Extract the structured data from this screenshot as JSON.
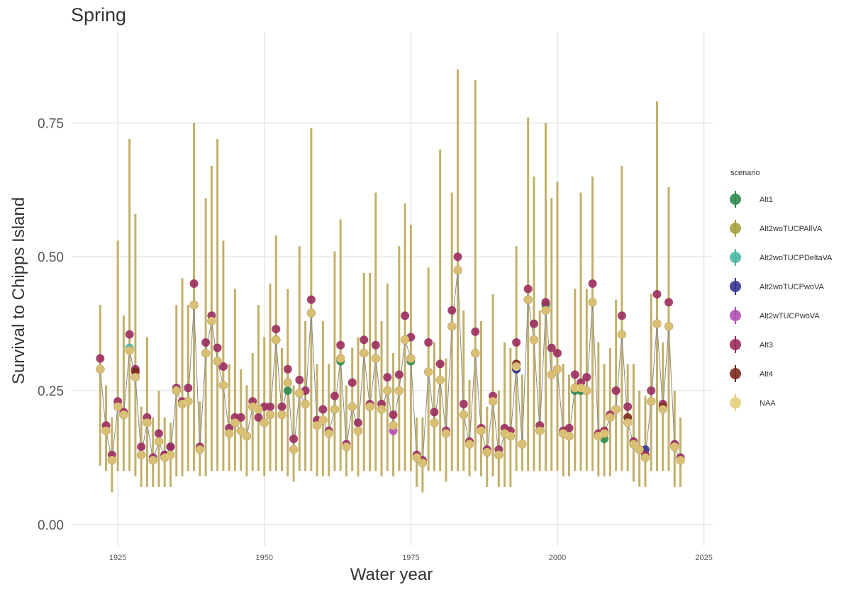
{
  "chart_data": {
    "type": "errorbar-line",
    "title": "Spring",
    "x_label": "Water year",
    "y_label": "Survival to Chipps Island",
    "legend_title": "scenario",
    "x": [
      1922,
      1923,
      1924,
      1925,
      1926,
      1927,
      1928,
      1929,
      1930,
      1931,
      1932,
      1933,
      1934,
      1935,
      1936,
      1937,
      1938,
      1939,
      1940,
      1941,
      1942,
      1943,
      1944,
      1945,
      1946,
      1947,
      1948,
      1949,
      1950,
      1951,
      1952,
      1953,
      1954,
      1955,
      1956,
      1957,
      1958,
      1959,
      1960,
      1961,
      1962,
      1963,
      1964,
      1965,
      1966,
      1967,
      1968,
      1969,
      1970,
      1971,
      1972,
      1973,
      1974,
      1975,
      1976,
      1977,
      1978,
      1979,
      1980,
      1981,
      1982,
      1983,
      1984,
      1985,
      1986,
      1987,
      1988,
      1989,
      1990,
      1991,
      1992,
      1993,
      1994,
      1995,
      1996,
      1997,
      1998,
      1999,
      2000,
      2001,
      2002,
      2003,
      2004,
      2005,
      2006,
      2007,
      2008,
      2009,
      2010,
      2011,
      2012,
      2013,
      2014,
      2015,
      2016,
      2017,
      2018,
      2019,
      2020,
      2021
    ],
    "xlim": [
      1917,
      2026.5
    ],
    "xticks": [
      1925,
      1950,
      1975,
      2000,
      2025
    ],
    "ylim": [
      -0.04,
      0.92
    ],
    "yticks": [
      {
        "value": 0,
        "label": "0.00"
      },
      {
        "value": 0.25,
        "label": "0.25"
      },
      {
        "value": 0.5,
        "label": "0.50"
      },
      {
        "value": 0.75,
        "label": "0.75"
      }
    ],
    "grid": true,
    "legend": "right",
    "series": [
      {
        "name": "Alt1",
        "color": "#2e8b4f",
        "values": [
          0.29,
          0.175,
          0.12,
          0.22,
          0.205,
          0.325,
          0.275,
          0.13,
          0.19,
          0.12,
          0.155,
          0.125,
          0.13,
          0.25,
          0.225,
          0.23,
          0.41,
          0.14,
          0.32,
          0.38,
          0.305,
          0.26,
          0.17,
          0.19,
          0.175,
          0.165,
          0.22,
          0.215,
          0.19,
          0.205,
          0.345,
          0.205,
          0.25,
          0.14,
          0.245,
          0.225,
          0.395,
          0.185,
          0.195,
          0.17,
          0.215,
          0.305,
          0.145,
          0.22,
          0.175,
          0.32,
          0.22,
          0.31,
          0.215,
          0.25,
          0.185,
          0.25,
          0.345,
          0.305,
          0.125,
          0.115,
          0.285,
          0.19,
          0.27,
          0.17,
          0.37,
          0.475,
          0.205,
          0.15,
          0.32,
          0.175,
          0.135,
          0.23,
          0.13,
          0.17,
          0.165,
          0.29,
          0.15,
          0.42,
          0.345,
          0.175,
          0.41,
          0.28,
          0.29,
          0.17,
          0.165,
          0.25,
          0.25,
          0.25,
          0.415,
          0.165,
          0.16,
          0.2,
          0.215,
          0.355,
          0.19,
          0.15,
          0.14,
          0.125,
          0.23,
          0.375,
          0.215,
          0.37,
          0.145,
          0.12
        ]
      },
      {
        "name": "Alt2woTUCPAllVA",
        "color": "#a6a03c",
        "values": [
          0.29,
          0.175,
          0.12,
          0.22,
          0.205,
          0.325,
          0.275,
          0.13,
          0.19,
          0.12,
          0.155,
          0.125,
          0.13,
          0.25,
          0.225,
          0.23,
          0.41,
          0.14,
          0.32,
          0.38,
          0.305,
          0.26,
          0.17,
          0.19,
          0.175,
          0.165,
          0.22,
          0.215,
          0.19,
          0.205,
          0.345,
          0.205,
          0.265,
          0.14,
          0.245,
          0.225,
          0.395,
          0.185,
          0.195,
          0.17,
          0.215,
          0.31,
          0.145,
          0.22,
          0.175,
          0.32,
          0.22,
          0.31,
          0.215,
          0.25,
          0.185,
          0.25,
          0.345,
          0.31,
          0.125,
          0.115,
          0.285,
          0.19,
          0.27,
          0.17,
          0.37,
          0.475,
          0.205,
          0.15,
          0.32,
          0.175,
          0.135,
          0.23,
          0.13,
          0.17,
          0.165,
          0.295,
          0.15,
          0.42,
          0.345,
          0.175,
          0.4,
          0.28,
          0.29,
          0.17,
          0.165,
          0.255,
          0.255,
          0.25,
          0.415,
          0.165,
          0.17,
          0.2,
          0.215,
          0.355,
          0.19,
          0.15,
          0.14,
          0.125,
          0.23,
          0.375,
          0.215,
          0.37,
          0.145,
          0.12
        ]
      },
      {
        "name": "Alt2woTUCPDeltaVA",
        "color": "#4db6a4",
        "values": [
          0.29,
          0.175,
          0.12,
          0.22,
          0.205,
          0.33,
          0.275,
          0.13,
          0.19,
          0.12,
          0.155,
          0.125,
          0.13,
          0.25,
          0.225,
          0.23,
          0.41,
          0.14,
          0.32,
          0.38,
          0.305,
          0.26,
          0.17,
          0.19,
          0.175,
          0.165,
          0.22,
          0.215,
          0.19,
          0.205,
          0.345,
          0.205,
          0.265,
          0.14,
          0.245,
          0.225,
          0.395,
          0.185,
          0.195,
          0.17,
          0.215,
          0.31,
          0.145,
          0.22,
          0.175,
          0.32,
          0.22,
          0.31,
          0.215,
          0.25,
          0.185,
          0.25,
          0.345,
          0.31,
          0.125,
          0.115,
          0.285,
          0.19,
          0.27,
          0.17,
          0.37,
          0.475,
          0.205,
          0.15,
          0.32,
          0.175,
          0.135,
          0.23,
          0.13,
          0.17,
          0.165,
          0.295,
          0.15,
          0.42,
          0.345,
          0.175,
          0.4,
          0.28,
          0.29,
          0.17,
          0.165,
          0.255,
          0.255,
          0.25,
          0.415,
          0.165,
          0.17,
          0.2,
          0.215,
          0.355,
          0.19,
          0.15,
          0.14,
          0.125,
          0.23,
          0.375,
          0.215,
          0.37,
          0.145,
          0.12
        ]
      },
      {
        "name": "Alt2woTUCPwoVA",
        "color": "#35358f",
        "values": [
          0.29,
          0.175,
          0.12,
          0.22,
          0.205,
          0.325,
          0.275,
          0.13,
          0.19,
          0.12,
          0.155,
          0.13,
          0.145,
          0.25,
          0.225,
          0.23,
          0.41,
          0.14,
          0.32,
          0.38,
          0.305,
          0.26,
          0.17,
          0.19,
          0.175,
          0.165,
          0.22,
          0.215,
          0.19,
          0.205,
          0.345,
          0.205,
          0.265,
          0.14,
          0.245,
          0.225,
          0.395,
          0.185,
          0.195,
          0.17,
          0.215,
          0.31,
          0.145,
          0.22,
          0.175,
          0.32,
          0.22,
          0.31,
          0.215,
          0.25,
          0.185,
          0.25,
          0.345,
          0.31,
          0.125,
          0.115,
          0.285,
          0.19,
          0.27,
          0.17,
          0.37,
          0.475,
          0.205,
          0.15,
          0.32,
          0.175,
          0.135,
          0.23,
          0.13,
          0.17,
          0.165,
          0.29,
          0.15,
          0.42,
          0.345,
          0.175,
          0.4,
          0.28,
          0.29,
          0.17,
          0.165,
          0.255,
          0.255,
          0.25,
          0.415,
          0.165,
          0.17,
          0.2,
          0.215,
          0.355,
          0.19,
          0.15,
          0.14,
          0.14,
          0.23,
          0.375,
          0.215,
          0.37,
          0.145,
          0.12
        ]
      },
      {
        "name": "Alt2wTUCPwoVA",
        "color": "#b04fb4",
        "values": [
          0.29,
          0.175,
          0.12,
          0.22,
          0.205,
          0.325,
          0.275,
          0.13,
          0.19,
          0.12,
          0.155,
          0.125,
          0.13,
          0.25,
          0.225,
          0.23,
          0.41,
          0.14,
          0.32,
          0.38,
          0.305,
          0.26,
          0.17,
          0.19,
          0.175,
          0.165,
          0.22,
          0.215,
          0.19,
          0.205,
          0.345,
          0.205,
          0.265,
          0.14,
          0.245,
          0.225,
          0.395,
          0.185,
          0.195,
          0.17,
          0.215,
          0.31,
          0.145,
          0.22,
          0.175,
          0.32,
          0.22,
          0.31,
          0.215,
          0.25,
          0.175,
          0.25,
          0.345,
          0.31,
          0.125,
          0.115,
          0.285,
          0.19,
          0.27,
          0.17,
          0.37,
          0.475,
          0.205,
          0.15,
          0.32,
          0.175,
          0.135,
          0.23,
          0.13,
          0.17,
          0.165,
          0.295,
          0.15,
          0.42,
          0.345,
          0.175,
          0.4,
          0.28,
          0.29,
          0.17,
          0.165,
          0.255,
          0.255,
          0.25,
          0.415,
          0.165,
          0.17,
          0.2,
          0.215,
          0.355,
          0.19,
          0.15,
          0.14,
          0.125,
          0.23,
          0.375,
          0.215,
          0.37,
          0.145,
          0.12
        ]
      },
      {
        "name": "Alt3",
        "color": "#9b2d5e",
        "values": [
          0.31,
          0.185,
          0.13,
          0.23,
          0.21,
          0.355,
          0.29,
          0.145,
          0.2,
          0.125,
          0.17,
          0.13,
          0.145,
          0.255,
          0.23,
          0.255,
          0.45,
          0.145,
          0.34,
          0.39,
          0.33,
          0.295,
          0.18,
          0.2,
          0.2,
          0.165,
          0.23,
          0.2,
          0.22,
          0.22,
          0.365,
          0.22,
          0.29,
          0.16,
          0.27,
          0.25,
          0.42,
          0.195,
          0.215,
          0.175,
          0.24,
          0.335,
          0.15,
          0.265,
          0.19,
          0.345,
          0.225,
          0.335,
          0.225,
          0.275,
          0.205,
          0.28,
          0.39,
          0.35,
          0.13,
          0.12,
          0.34,
          0.21,
          0.3,
          0.175,
          0.4,
          0.5,
          0.225,
          0.155,
          0.36,
          0.18,
          0.14,
          0.24,
          0.14,
          0.18,
          0.175,
          0.34,
          0.15,
          0.44,
          0.375,
          0.185,
          0.415,
          0.33,
          0.32,
          0.175,
          0.18,
          0.28,
          0.265,
          0.275,
          0.45,
          0.17,
          0.175,
          0.205,
          0.25,
          0.39,
          0.22,
          0.155,
          0.14,
          0.13,
          0.25,
          0.43,
          0.225,
          0.415,
          0.15,
          0.125
        ]
      },
      {
        "name": "Alt4",
        "color": "#7a2a1c",
        "values": [
          0.29,
          0.175,
          0.12,
          0.22,
          0.205,
          0.325,
          0.285,
          0.13,
          0.19,
          0.12,
          0.155,
          0.125,
          0.13,
          0.25,
          0.225,
          0.23,
          0.41,
          0.14,
          0.32,
          0.38,
          0.305,
          0.26,
          0.17,
          0.19,
          0.175,
          0.165,
          0.22,
          0.215,
          0.19,
          0.205,
          0.345,
          0.205,
          0.265,
          0.14,
          0.245,
          0.225,
          0.395,
          0.185,
          0.195,
          0.17,
          0.215,
          0.31,
          0.145,
          0.22,
          0.175,
          0.32,
          0.22,
          0.31,
          0.215,
          0.25,
          0.185,
          0.25,
          0.345,
          0.31,
          0.125,
          0.115,
          0.285,
          0.19,
          0.27,
          0.17,
          0.37,
          0.475,
          0.205,
          0.15,
          0.32,
          0.175,
          0.135,
          0.23,
          0.13,
          0.17,
          0.165,
          0.3,
          0.15,
          0.42,
          0.345,
          0.175,
          0.4,
          0.28,
          0.29,
          0.17,
          0.165,
          0.255,
          0.255,
          0.25,
          0.415,
          0.165,
          0.17,
          0.2,
          0.215,
          0.355,
          0.2,
          0.15,
          0.14,
          0.125,
          0.23,
          0.375,
          0.22,
          0.37,
          0.145,
          0.12
        ]
      },
      {
        "name": "NAA",
        "color": "#e3cf7a",
        "values": [
          0.29,
          0.175,
          0.12,
          0.22,
          0.205,
          0.325,
          0.275,
          0.13,
          0.19,
          0.12,
          0.155,
          0.125,
          0.13,
          0.25,
          0.225,
          0.23,
          0.41,
          0.14,
          0.32,
          0.38,
          0.305,
          0.26,
          0.17,
          0.19,
          0.175,
          0.165,
          0.22,
          0.215,
          0.19,
          0.205,
          0.345,
          0.205,
          0.265,
          0.14,
          0.245,
          0.225,
          0.395,
          0.185,
          0.195,
          0.17,
          0.215,
          0.31,
          0.145,
          0.22,
          0.175,
          0.32,
          0.22,
          0.31,
          0.215,
          0.25,
          0.185,
          0.25,
          0.345,
          0.31,
          0.125,
          0.115,
          0.285,
          0.19,
          0.27,
          0.17,
          0.37,
          0.475,
          0.205,
          0.15,
          0.32,
          0.175,
          0.135,
          0.23,
          0.13,
          0.17,
          0.165,
          0.295,
          0.15,
          0.42,
          0.345,
          0.175,
          0.4,
          0.28,
          0.29,
          0.17,
          0.165,
          0.255,
          0.255,
          0.25,
          0.415,
          0.165,
          0.17,
          0.2,
          0.215,
          0.355,
          0.19,
          0.15,
          0.14,
          0.125,
          0.23,
          0.375,
          0.215,
          0.37,
          0.145,
          0.12
        ],
        "lower": [
          0.11,
          0.1,
          0.06,
          0.1,
          0.1,
          0.1,
          0.09,
          0.07,
          0.07,
          0.07,
          0.07,
          0.07,
          0.07,
          0.09,
          0.09,
          0.1,
          0.1,
          0.09,
          0.09,
          0.1,
          0.1,
          0.1,
          0.1,
          0.1,
          0.1,
          0.09,
          0.1,
          0.1,
          0.09,
          0.1,
          0.1,
          0.1,
          0.09,
          0.08,
          0.1,
          0.1,
          0.1,
          0.09,
          0.09,
          0.09,
          0.1,
          0.1,
          0.09,
          0.1,
          0.09,
          0.1,
          0.1,
          0.1,
          0.09,
          0.1,
          0.09,
          0.1,
          0.1,
          0.1,
          0.07,
          0.06,
          0.1,
          0.1,
          0.1,
          0.08,
          0.1,
          0.1,
          0.1,
          0.09,
          0.1,
          0.09,
          0.07,
          0.09,
          0.07,
          0.07,
          0.07,
          0.1,
          0.1,
          0.1,
          0.1,
          0.1,
          0.1,
          0.1,
          0.1,
          0.09,
          0.09,
          0.1,
          0.1,
          0.1,
          0.1,
          0.09,
          0.09,
          0.09,
          0.1,
          0.1,
          0.1,
          0.08,
          0.07,
          0.07,
          0.1,
          0.1,
          0.1,
          0.1,
          0.07,
          0.07
        ],
        "upper": [
          0.41,
          0.26,
          0.2,
          0.53,
          0.39,
          0.72,
          0.58,
          0.22,
          0.35,
          0.2,
          0.25,
          0.2,
          0.19,
          0.41,
          0.46,
          0.41,
          0.75,
          0.23,
          0.61,
          0.67,
          0.72,
          0.53,
          0.3,
          0.44,
          0.29,
          0.26,
          0.32,
          0.41,
          0.35,
          0.45,
          0.54,
          0.33,
          0.44,
          0.26,
          0.52,
          0.38,
          0.74,
          0.3,
          0.38,
          0.3,
          0.51,
          0.57,
          0.26,
          0.33,
          0.35,
          0.47,
          0.47,
          0.62,
          0.38,
          0.45,
          0.32,
          0.52,
          0.6,
          0.56,
          0.2,
          0.2,
          0.48,
          0.34,
          0.7,
          0.31,
          0.62,
          0.85,
          0.4,
          0.27,
          0.83,
          0.38,
          0.22,
          0.43,
          0.25,
          0.34,
          0.33,
          0.52,
          0.28,
          0.76,
          0.65,
          0.4,
          0.75,
          0.61,
          0.64,
          0.3,
          0.28,
          0.44,
          0.62,
          0.44,
          0.65,
          0.34,
          0.3,
          0.33,
          0.42,
          0.67,
          0.3,
          0.3,
          0.25,
          0.24,
          0.43,
          0.79,
          0.34,
          0.63,
          0.25,
          0.2
        ]
      }
    ]
  }
}
